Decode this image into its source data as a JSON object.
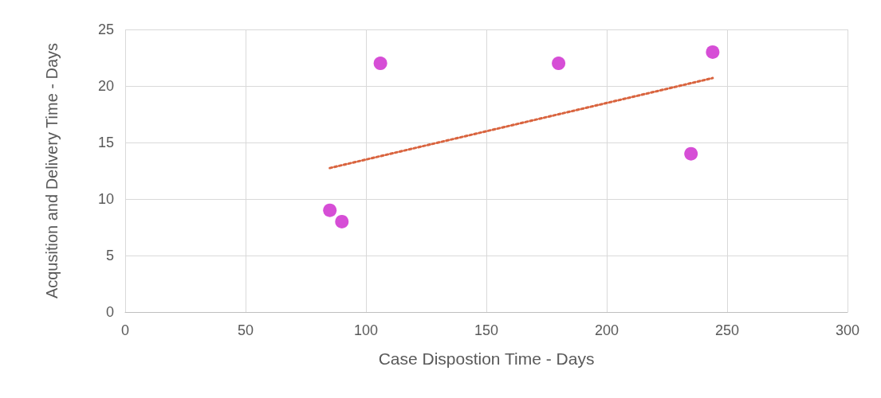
{
  "chart_data": {
    "type": "scatter",
    "xlabel": "Case Dispostion Time - Days",
    "ylabel": "Acqusition and Delivery Time - Days",
    "xlim": [
      0,
      300
    ],
    "xticks": [
      0,
      50,
      100,
      150,
      200,
      250,
      300
    ],
    "ylim": [
      0,
      25
    ],
    "yticks": [
      0,
      5,
      10,
      15,
      20,
      25
    ],
    "grid": true,
    "series": [
      {
        "color": "#cc22cc",
        "marker": "circle",
        "x": [
          85,
          90,
          106,
          180,
          235,
          244
        ],
        "values": [
          9,
          8,
          22,
          22,
          14,
          23
        ]
      },
      {
        "type": "line",
        "color": "#d9643f",
        "marker": "none",
        "line_style": "dotted",
        "x": [
          85,
          244
        ],
        "values": [
          12.74,
          20.7
        ]
      }
    ]
  }
}
